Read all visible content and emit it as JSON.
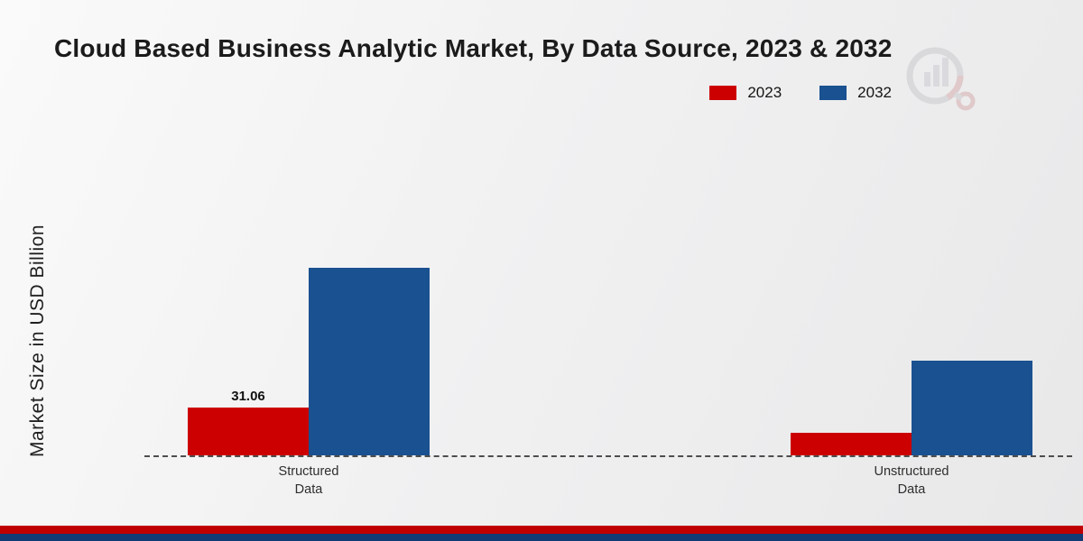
{
  "title": "Cloud Based Business Analytic Market, By Data Source, 2023 & 2032",
  "ylabel": "Market Size in USD Billion",
  "colors": {
    "series_2023": "#cc0001",
    "series_2032": "#1a5190",
    "footer_red": "#c00000",
    "footer_blue": "#123a75",
    "axis_dash": "#4d4d4d"
  },
  "legend": [
    {
      "label": "2023",
      "color": "#cc0001"
    },
    {
      "label": "2032",
      "color": "#1a5190"
    }
  ],
  "chart_data": {
    "type": "bar",
    "title": "Cloud Based Business Analytic Market, By Data Source, 2023 & 2032",
    "xlabel": "",
    "ylabel": "Market Size in USD Billion",
    "categories": [
      "Structured Data",
      "Unstructured Data"
    ],
    "tick_labels": [
      "Structured\nData",
      "Unstructured\nData"
    ],
    "series": [
      {
        "name": "2023",
        "color": "#cc0001",
        "values": [
          31.06,
          14.7
        ]
      },
      {
        "name": "2032",
        "color": "#1a5190",
        "values": [
          122,
          61.5
        ]
      }
    ],
    "annotations": [
      {
        "series": 0,
        "category": 0,
        "text": "31.06"
      }
    ],
    "ylim": [
      0,
      140
    ],
    "grid": false,
    "legend_position": "top-right",
    "axis_style": "dashed-baseline"
  }
}
